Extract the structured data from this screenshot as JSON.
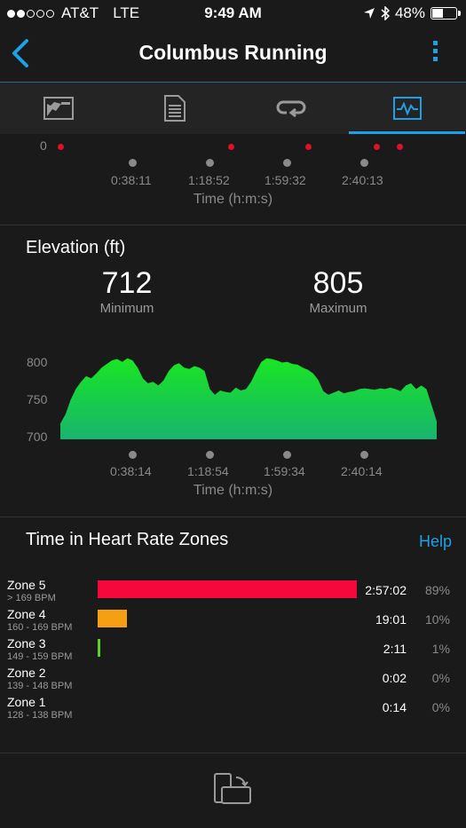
{
  "status": {
    "carrier": "AT&T",
    "network": "LTE",
    "time": "9:49 AM",
    "battery": "48%",
    "battery_level": 0.48,
    "signal_bars": 2
  },
  "header": {
    "title": "Columbus Running",
    "back_icon": "chevron-left-icon",
    "menu_icon": "more-vertical-icon"
  },
  "tabs": [
    {
      "icon": "map-icon"
    },
    {
      "icon": "document-icon"
    },
    {
      "icon": "laps-icon"
    },
    {
      "icon": "charts-icon",
      "active": true
    }
  ],
  "top_chart": {
    "y_label": "0",
    "ticks": [
      "0:38:11",
      "1:18:52",
      "1:59:32",
      "2:40:13"
    ],
    "x_title": "Time (h:m:s)"
  },
  "elevation": {
    "title": "Elevation (ft)",
    "min_value": "712",
    "min_label": "Minimum",
    "max_value": "805",
    "max_label": "Maximum",
    "chart_data": {
      "type": "area",
      "y_ticks": [
        "800",
        "750",
        "700"
      ],
      "ylim": [
        690,
        810
      ],
      "x_ticks": [
        "0:38:14",
        "1:18:54",
        "1:59:34",
        "2:40:14"
      ],
      "x_title": "Time (h:m:s)",
      "values": [
        712,
        725,
        745,
        760,
        770,
        778,
        775,
        782,
        790,
        795,
        800,
        802,
        798,
        803,
        800,
        790,
        775,
        768,
        770,
        765,
        772,
        785,
        793,
        796,
        790,
        788,
        792,
        790,
        785,
        760,
        752,
        758,
        756,
        755,
        762,
        758,
        760,
        770,
        785,
        798,
        803,
        802,
        800,
        797,
        798,
        795,
        794,
        790,
        787,
        782,
        773,
        757,
        752,
        755,
        758,
        754,
        756,
        757,
        760,
        761,
        760,
        759,
        761,
        760,
        762,
        760,
        757,
        765,
        768,
        760,
        765,
        760,
        738,
        715
      ],
      "color_top": "#19e622",
      "color_bottom": "#18b46e"
    }
  },
  "hr_zones": {
    "title": "Time in Heart Rate Zones",
    "help": "Help",
    "zones": [
      {
        "name": "Zone 5",
        "range": "> 169 BPM",
        "time": "2:57:02",
        "pct": "89%",
        "fraction": 0.89,
        "color": "#f5083c"
      },
      {
        "name": "Zone 4",
        "range": "160 - 169 BPM",
        "time": "19:01",
        "pct": "10%",
        "fraction": 0.1,
        "color": "#f5a013"
      },
      {
        "name": "Zone 3",
        "range": "149 - 159 BPM",
        "time": "2:11",
        "pct": "1%",
        "fraction": 0.01,
        "color": "#5cd21e"
      },
      {
        "name": "Zone 2",
        "range": "139 - 148 BPM",
        "time": "0:02",
        "pct": "0%",
        "fraction": 0.0,
        "color": "#1ea0e6"
      },
      {
        "name": "Zone 1",
        "range": "128 - 138 BPM",
        "time": "0:14",
        "pct": "0%",
        "fraction": 0.0,
        "color": "#9a9a9a"
      }
    ]
  },
  "footer": {
    "icon": "rotate-device-icon"
  }
}
